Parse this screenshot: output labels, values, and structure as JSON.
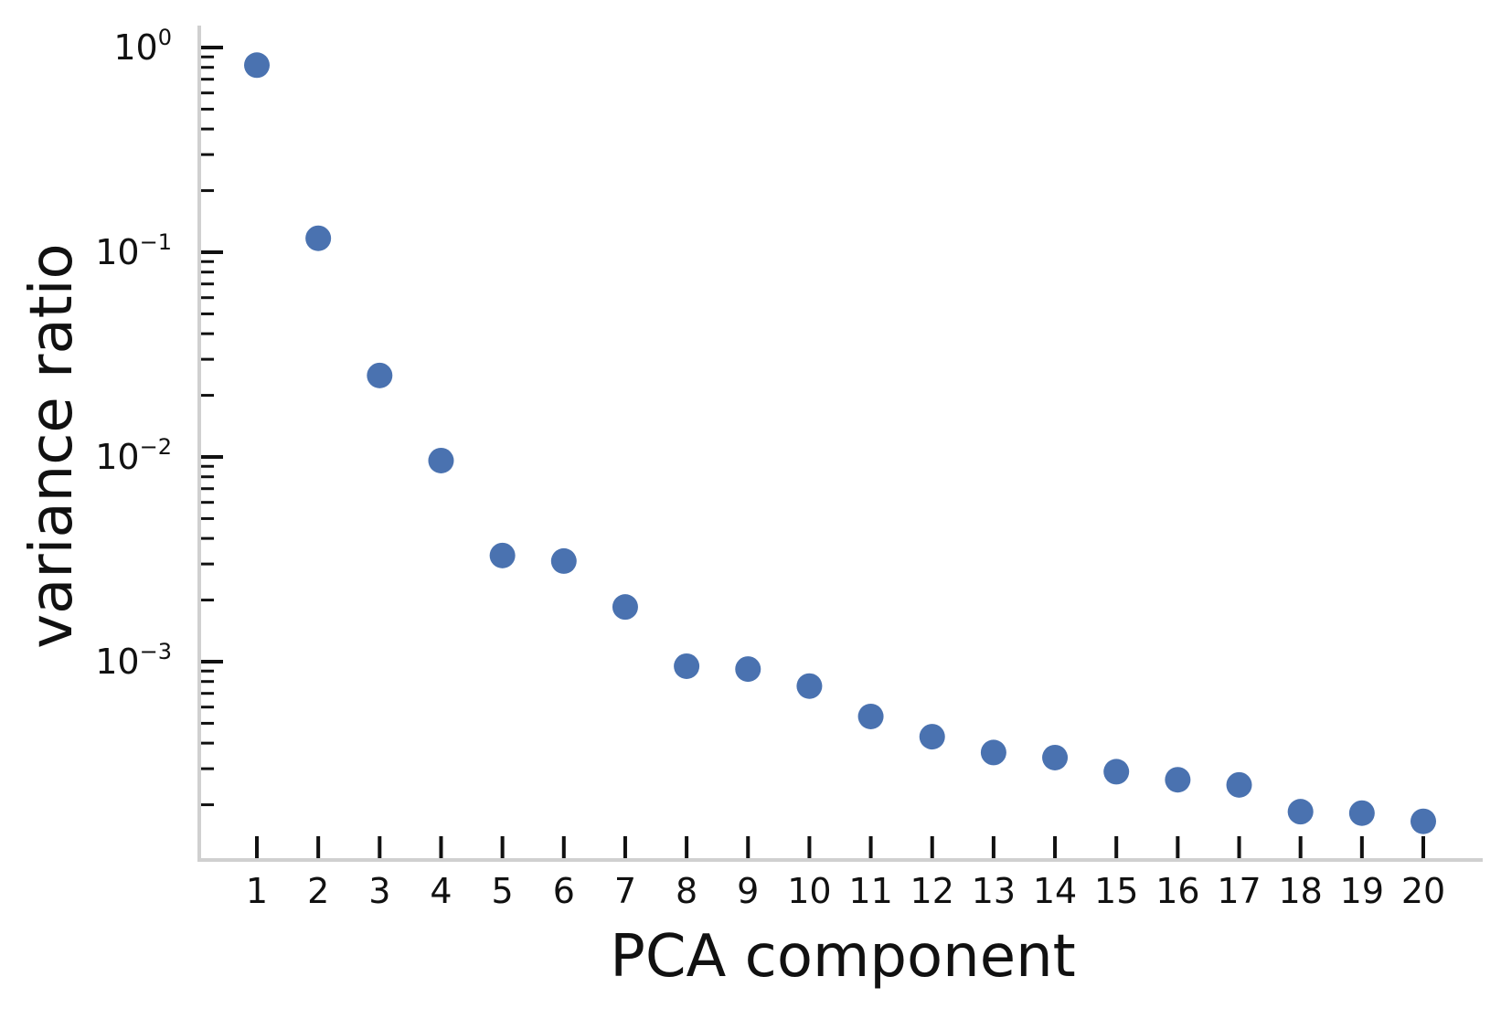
{
  "chart_data": {
    "type": "scatter",
    "title": "",
    "xlabel": "PCA component",
    "ylabel": "variance ratio",
    "y_scale": "log",
    "ylim": [
      0.00012,
      1.25
    ],
    "xlim": [
      0.1,
      21.0
    ],
    "grid": false,
    "legend": "none",
    "marker_color": "#4a72b0",
    "axis_color": "#d0d0d0",
    "tick_color": "#111111",
    "x_ticks": [
      {
        "value": 1,
        "label": "1"
      },
      {
        "value": 2,
        "label": "2"
      },
      {
        "value": 3,
        "label": "3"
      },
      {
        "value": 4,
        "label": "4"
      },
      {
        "value": 5,
        "label": "5"
      },
      {
        "value": 6,
        "label": "6"
      },
      {
        "value": 7,
        "label": "7"
      },
      {
        "value": 8,
        "label": "8"
      },
      {
        "value": 9,
        "label": "9"
      },
      {
        "value": 10,
        "label": "10"
      },
      {
        "value": 11,
        "label": "11"
      },
      {
        "value": 12,
        "label": "12"
      },
      {
        "value": 13,
        "label": "13"
      },
      {
        "value": 14,
        "label": "14"
      },
      {
        "value": 15,
        "label": "15"
      },
      {
        "value": 16,
        "label": "16"
      },
      {
        "value": 17,
        "label": "17"
      },
      {
        "value": 18,
        "label": "18"
      },
      {
        "value": 19,
        "label": "19"
      },
      {
        "value": 20,
        "label": "20"
      }
    ],
    "y_ticks": [
      {
        "value": 1,
        "base": "10",
        "exponent": "0"
      },
      {
        "value": 0.1,
        "base": "10",
        "exponent": "−1"
      },
      {
        "value": 0.01,
        "base": "10",
        "exponent": "−2"
      },
      {
        "value": 0.001,
        "base": "10",
        "exponent": "−3"
      }
    ],
    "series": [
      {
        "x": [
          1,
          2,
          3,
          4,
          5,
          6,
          7,
          8,
          9,
          10,
          11,
          12,
          13,
          14,
          15,
          16,
          17,
          18,
          19,
          20
        ],
        "y": [
          0.82,
          0.117,
          0.025,
          0.0096,
          0.0033,
          0.0031,
          0.00185,
          0.00095,
          0.00092,
          0.00076,
          0.00054,
          0.00043,
          0.00036,
          0.00034,
          0.00029,
          0.000265,
          0.00025,
          0.000185,
          0.000182,
          0.000166
        ]
      }
    ]
  }
}
